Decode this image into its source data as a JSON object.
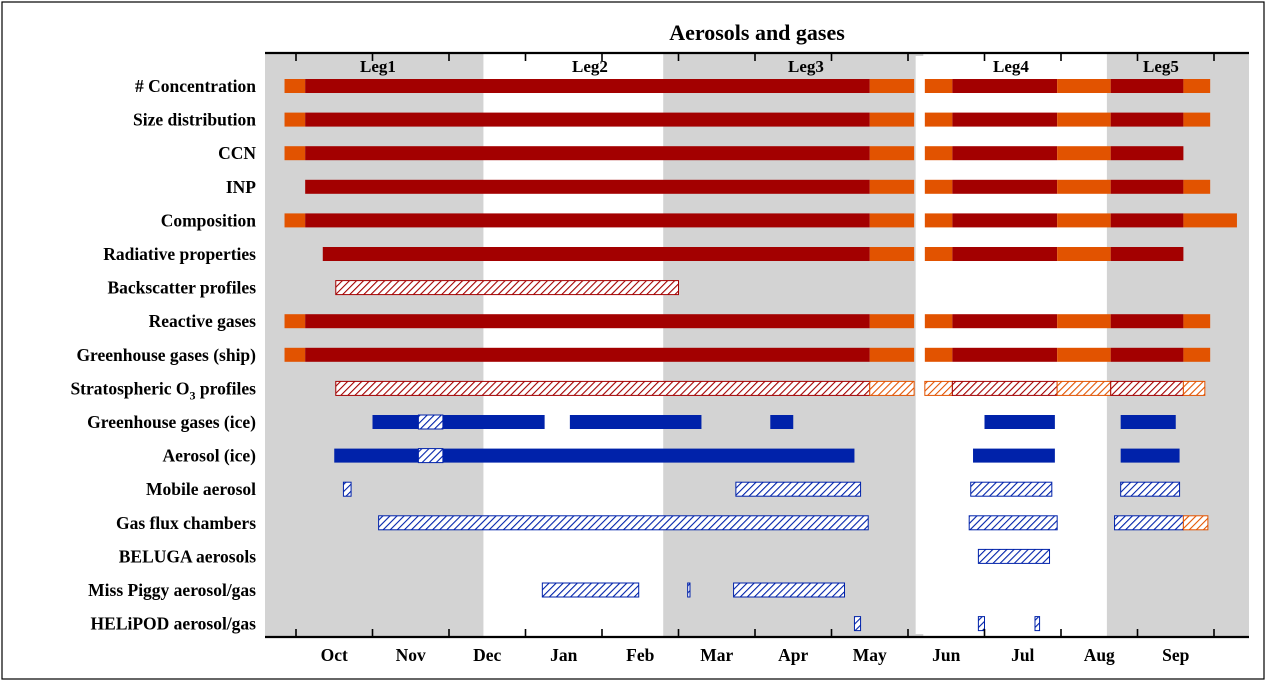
{
  "chart_data": {
    "type": "gantt",
    "title": "Aerosols and gases",
    "colors": {
      "continuous": "#a30000",
      "partial": "#e25300",
      "ice": "#0022aa",
      "shading": "#d3d3d3"
    },
    "months": [
      "Oct",
      "Nov",
      "Dec",
      "Jan",
      "Feb",
      "Mar",
      "Apr",
      "May",
      "Jun",
      "Jul",
      "Aug",
      "Sep"
    ],
    "legs": [
      {
        "label": "Leg1",
        "start": 0.0,
        "end": 2.45
      },
      {
        "label": "Leg2",
        "start": 2.45,
        "end": 4.8
      },
      {
        "label": "Leg3",
        "start": 4.8,
        "end": 8.2
      },
      {
        "label": "Leg4",
        "start": 8.2,
        "end": 10.6
      },
      {
        "label": "Leg5",
        "start": 10.6,
        "end": 12.6
      }
    ],
    "shaded_periods": [
      [
        -0.5,
        2.45
      ],
      [
        4.8,
        8.2
      ],
      [
        10.6,
        12.6
      ]
    ],
    "rows": [
      {
        "label": "# Concentration",
        "bars": [
          {
            "start": -0.15,
            "end": 0.12,
            "style": "partial"
          },
          {
            "start": 0.12,
            "end": 7.5,
            "style": "continuous"
          },
          {
            "start": 7.5,
            "end": 8.08,
            "style": "partial"
          },
          {
            "start": 8.22,
            "end": 8.58,
            "style": "partial"
          },
          {
            "start": 8.58,
            "end": 9.95,
            "style": "continuous"
          },
          {
            "start": 9.95,
            "end": 10.65,
            "style": "partial"
          },
          {
            "start": 10.65,
            "end": 11.6,
            "style": "continuous"
          },
          {
            "start": 11.6,
            "end": 11.95,
            "style": "partial"
          }
        ]
      },
      {
        "label": "Size distribution",
        "bars": [
          {
            "start": -0.15,
            "end": 0.12,
            "style": "partial"
          },
          {
            "start": 0.12,
            "end": 7.5,
            "style": "continuous"
          },
          {
            "start": 7.5,
            "end": 8.08,
            "style": "partial"
          },
          {
            "start": 8.22,
            "end": 8.58,
            "style": "partial"
          },
          {
            "start": 8.58,
            "end": 9.95,
            "style": "continuous"
          },
          {
            "start": 9.95,
            "end": 10.65,
            "style": "partial"
          },
          {
            "start": 10.65,
            "end": 11.6,
            "style": "continuous"
          },
          {
            "start": 11.6,
            "end": 11.95,
            "style": "partial"
          }
        ]
      },
      {
        "label": "CCN",
        "bars": [
          {
            "start": -0.15,
            "end": 0.12,
            "style": "partial"
          },
          {
            "start": 0.12,
            "end": 7.5,
            "style": "continuous"
          },
          {
            "start": 7.5,
            "end": 8.08,
            "style": "partial"
          },
          {
            "start": 8.22,
            "end": 8.58,
            "style": "partial"
          },
          {
            "start": 8.58,
            "end": 9.95,
            "style": "continuous"
          },
          {
            "start": 9.95,
            "end": 10.65,
            "style": "partial"
          },
          {
            "start": 10.65,
            "end": 11.6,
            "style": "continuous"
          }
        ]
      },
      {
        "label": "INP",
        "bars": [
          {
            "start": 0.12,
            "end": 7.5,
            "style": "continuous"
          },
          {
            "start": 7.5,
            "end": 8.08,
            "style": "partial"
          },
          {
            "start": 8.22,
            "end": 8.58,
            "style": "partial"
          },
          {
            "start": 8.58,
            "end": 9.95,
            "style": "continuous"
          },
          {
            "start": 9.95,
            "end": 10.65,
            "style": "partial"
          },
          {
            "start": 10.65,
            "end": 11.6,
            "style": "continuous"
          },
          {
            "start": 11.6,
            "end": 11.95,
            "style": "partial"
          }
        ]
      },
      {
        "label": "Composition",
        "bars": [
          {
            "start": -0.15,
            "end": 0.12,
            "style": "partial"
          },
          {
            "start": 0.12,
            "end": 7.5,
            "style": "continuous"
          },
          {
            "start": 7.5,
            "end": 8.08,
            "style": "partial"
          },
          {
            "start": 8.22,
            "end": 8.58,
            "style": "partial"
          },
          {
            "start": 8.58,
            "end": 9.95,
            "style": "continuous"
          },
          {
            "start": 9.95,
            "end": 10.65,
            "style": "partial"
          },
          {
            "start": 10.65,
            "end": 11.6,
            "style": "continuous"
          },
          {
            "start": 11.6,
            "end": 12.3,
            "style": "partial"
          }
        ]
      },
      {
        "label": "Radiative properties",
        "bars": [
          {
            "start": 0.35,
            "end": 7.5,
            "style": "continuous"
          },
          {
            "start": 7.5,
            "end": 8.08,
            "style": "partial"
          },
          {
            "start": 8.22,
            "end": 8.58,
            "style": "partial"
          },
          {
            "start": 8.58,
            "end": 9.95,
            "style": "continuous"
          },
          {
            "start": 9.95,
            "end": 10.65,
            "style": "partial"
          },
          {
            "start": 10.65,
            "end": 11.6,
            "style": "continuous"
          }
        ]
      },
      {
        "label": "Backscatter profiles",
        "bars": [
          {
            "start": 0.52,
            "end": 5.0,
            "style": "continuous",
            "hatched": true
          }
        ]
      },
      {
        "label": "Reactive gases",
        "bars": [
          {
            "start": -0.15,
            "end": 0.12,
            "style": "partial"
          },
          {
            "start": 0.12,
            "end": 7.5,
            "style": "continuous"
          },
          {
            "start": 7.5,
            "end": 8.08,
            "style": "partial"
          },
          {
            "start": 8.22,
            "end": 8.58,
            "style": "partial"
          },
          {
            "start": 8.58,
            "end": 9.95,
            "style": "continuous"
          },
          {
            "start": 9.95,
            "end": 10.65,
            "style": "partial"
          },
          {
            "start": 10.65,
            "end": 11.6,
            "style": "continuous"
          },
          {
            "start": 11.6,
            "end": 11.95,
            "style": "partial"
          }
        ]
      },
      {
        "label": "Greenhouse gases (ship)",
        "bars": [
          {
            "start": -0.15,
            "end": 0.12,
            "style": "partial"
          },
          {
            "start": 0.12,
            "end": 7.5,
            "style": "continuous"
          },
          {
            "start": 7.5,
            "end": 8.08,
            "style": "partial"
          },
          {
            "start": 8.22,
            "end": 8.58,
            "style": "partial"
          },
          {
            "start": 8.58,
            "end": 9.95,
            "style": "continuous"
          },
          {
            "start": 9.95,
            "end": 10.65,
            "style": "partial"
          },
          {
            "start": 10.65,
            "end": 11.6,
            "style": "continuous"
          },
          {
            "start": 11.6,
            "end": 11.95,
            "style": "partial"
          }
        ]
      },
      {
        "label": "Stratospheric O",
        "label_sub": "3",
        "label_tail": " profiles",
        "bars": [
          {
            "start": 0.52,
            "end": 7.5,
            "style": "continuous",
            "hatched": true
          },
          {
            "start": 7.5,
            "end": 8.08,
            "style": "partial",
            "hatched": true
          },
          {
            "start": 8.22,
            "end": 8.58,
            "style": "partial",
            "hatched": true
          },
          {
            "start": 8.58,
            "end": 9.95,
            "style": "continuous",
            "hatched": true
          },
          {
            "start": 9.95,
            "end": 10.65,
            "style": "partial",
            "hatched": true
          },
          {
            "start": 10.65,
            "end": 11.6,
            "style": "continuous",
            "hatched": true
          },
          {
            "start": 11.6,
            "end": 11.88,
            "style": "partial",
            "hatched": true
          }
        ]
      },
      {
        "label": "Greenhouse gases (ice)",
        "bars": [
          {
            "start": 1.0,
            "end": 1.6,
            "style": "ice"
          },
          {
            "start": 1.6,
            "end": 1.92,
            "style": "ice",
            "hatched": true
          },
          {
            "start": 1.92,
            "end": 3.25,
            "style": "ice"
          },
          {
            "start": 3.58,
            "end": 5.3,
            "style": "ice"
          },
          {
            "start": 6.2,
            "end": 6.5,
            "style": "ice"
          },
          {
            "start": 9.0,
            "end": 9.92,
            "style": "ice"
          },
          {
            "start": 10.78,
            "end": 11.5,
            "style": "ice"
          }
        ]
      },
      {
        "label": "Aerosol (ice)",
        "bars": [
          {
            "start": 0.5,
            "end": 1.6,
            "style": "ice"
          },
          {
            "start": 1.6,
            "end": 1.92,
            "style": "ice",
            "hatched": true
          },
          {
            "start": 1.92,
            "end": 7.3,
            "style": "ice"
          },
          {
            "start": 8.85,
            "end": 9.92,
            "style": "ice"
          },
          {
            "start": 10.78,
            "end": 11.55,
            "style": "ice"
          }
        ]
      },
      {
        "label": "Mobile aerosol",
        "bars": [
          {
            "start": 0.62,
            "end": 0.72,
            "style": "ice",
            "hatched": true
          },
          {
            "start": 5.75,
            "end": 7.38,
            "style": "ice",
            "hatched": true
          },
          {
            "start": 8.82,
            "end": 9.88,
            "style": "ice",
            "hatched": true
          },
          {
            "start": 10.78,
            "end": 11.55,
            "style": "ice",
            "hatched": true
          }
        ]
      },
      {
        "label": "Gas flux chambers",
        "bars": [
          {
            "start": 1.08,
            "end": 7.48,
            "style": "ice",
            "hatched": true
          },
          {
            "start": 8.8,
            "end": 9.95,
            "style": "ice",
            "hatched": true
          },
          {
            "start": 10.7,
            "end": 11.6,
            "style": "ice",
            "hatched": true
          },
          {
            "start": 11.6,
            "end": 11.92,
            "style": "partial",
            "hatched": true
          }
        ]
      },
      {
        "label": "BELUGA aerosols",
        "bars": [
          {
            "start": 8.92,
            "end": 9.85,
            "style": "ice",
            "hatched": true
          }
        ]
      },
      {
        "label": "Miss Piggy aerosol/gas",
        "bars": [
          {
            "start": 3.22,
            "end": 4.48,
            "style": "ice",
            "hatched": true
          },
          {
            "start": 5.12,
            "end": 5.15,
            "style": "ice",
            "hatched": true
          },
          {
            "start": 5.72,
            "end": 7.17,
            "style": "ice",
            "hatched": true
          }
        ]
      },
      {
        "label": "HELiPOD aerosol/gas",
        "bars": [
          {
            "start": 7.3,
            "end": 7.38,
            "style": "ice",
            "hatched": true
          },
          {
            "start": 8.92,
            "end": 9.0,
            "style": "ice",
            "hatched": true
          },
          {
            "start": 9.66,
            "end": 9.72,
            "style": "ice",
            "hatched": true
          }
        ]
      }
    ]
  }
}
